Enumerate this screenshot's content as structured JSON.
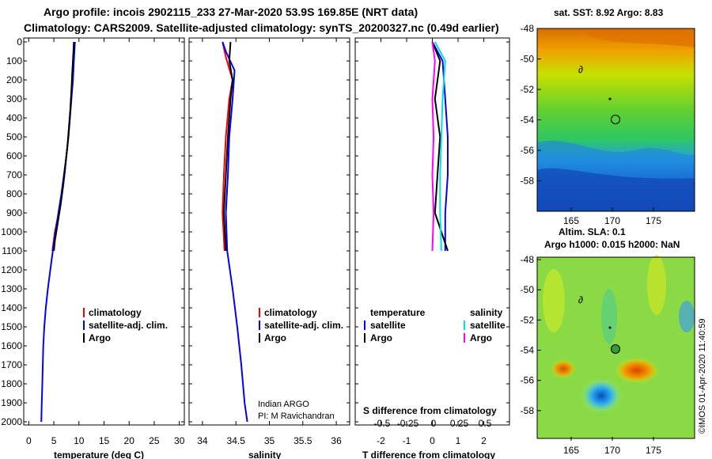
{
  "header": {
    "title_line1": "Argo profile: incois 2902115_233 27-Mar-2020 53.9S 169.85E (NRT data)",
    "title_line2": "Climatology: CARS2009. Satellite-adjusted climatology: synTS_20200327.nc (0.49d earlier)"
  },
  "colors": {
    "climatology": "#ff0000",
    "satellite": "#0000ff",
    "argo": "#000000",
    "sat_salinity": "#00e0e0",
    "argo_salinity": "#ff00ff"
  },
  "chart_data": [
    {
      "type": "line",
      "name": "temperature",
      "xlabel": "temperature (deg C)",
      "ylabel": "",
      "xlim": [
        -1,
        31
      ],
      "ylim": [
        2050,
        0
      ],
      "xticks": [
        "0",
        "5",
        "10",
        "15",
        "20",
        "25",
        "30"
      ],
      "yticks": [
        "0",
        "100",
        "200",
        "300",
        "400",
        "500",
        "600",
        "700",
        "800",
        "900",
        "1000",
        "1100",
        "1200",
        "1300",
        "1400",
        "1500",
        "1600",
        "1700",
        "1800",
        "1900",
        "2000"
      ],
      "legend": [
        "climatology",
        "satellite-adj. clim.",
        "Argo"
      ],
      "series": [
        {
          "name": "climatology",
          "color_key": "climatology",
          "points": [
            [
              9,
              0
            ],
            [
              9,
              50
            ],
            [
              8.7,
              150
            ],
            [
              8.6,
              250
            ],
            [
              8.4,
              300
            ],
            [
              8.2,
              400
            ],
            [
              7.9,
              500
            ],
            [
              7.5,
              600
            ],
            [
              7.1,
              700
            ],
            [
              6.6,
              800
            ],
            [
              6.1,
              900
            ],
            [
              5.6,
              950
            ],
            [
              5.2,
              1000
            ],
            [
              4.7,
              1100
            ]
          ]
        },
        {
          "name": "satellite-adj. clim.",
          "color_key": "satellite",
          "points": [
            [
              9.2,
              0
            ],
            [
              9.0,
              100
            ],
            [
              8.8,
              200
            ],
            [
              8.5,
              300
            ],
            [
              8.2,
              400
            ],
            [
              7.9,
              500
            ],
            [
              7.5,
              600
            ],
            [
              7.0,
              700
            ],
            [
              6.5,
              800
            ],
            [
              5.9,
              900
            ],
            [
              5.3,
              1000
            ],
            [
              4.8,
              1100
            ],
            [
              4.3,
              1200
            ],
            [
              3.8,
              1300
            ],
            [
              3.4,
              1400
            ],
            [
              3.1,
              1500
            ],
            [
              2.9,
              1600
            ],
            [
              2.8,
              1700
            ],
            [
              2.7,
              1800
            ],
            [
              2.6,
              1900
            ],
            [
              2.5,
              2000
            ]
          ]
        },
        {
          "name": "Argo",
          "color_key": "argo",
          "points": [
            [
              9.0,
              0
            ],
            [
              8.9,
              50
            ],
            [
              8.7,
              150
            ],
            [
              8.5,
              250
            ],
            [
              8.3,
              350
            ],
            [
              8.0,
              450
            ],
            [
              7.7,
              550
            ],
            [
              7.3,
              650
            ],
            [
              6.9,
              750
            ],
            [
              6.4,
              850
            ],
            [
              5.8,
              950
            ],
            [
              5.2,
              1050
            ],
            [
              5.0,
              1100
            ]
          ]
        }
      ]
    },
    {
      "type": "line",
      "name": "salinity",
      "xlabel": "salinity",
      "xlim": [
        33.8,
        36.2
      ],
      "ylim": [
        2050,
        0
      ],
      "xticks": [
        "34",
        "34.5",
        "35",
        "35.5",
        "36"
      ],
      "legend": [
        "climatology",
        "satellite-adj. clim.",
        "Argo"
      ],
      "series": [
        {
          "name": "climatology",
          "color_key": "climatology",
          "points": [
            [
              34.3,
              0
            ],
            [
              34.35,
              80
            ],
            [
              34.45,
              200
            ],
            [
              34.4,
              300
            ],
            [
              34.35,
              500
            ],
            [
              34.32,
              700
            ],
            [
              34.3,
              900
            ],
            [
              34.33,
              1100
            ]
          ]
        },
        {
          "name": "satellite-adj. clim.",
          "color_key": "satellite",
          "points": [
            [
              34.3,
              0
            ],
            [
              34.35,
              50
            ],
            [
              34.48,
              150
            ],
            [
              34.45,
              300
            ],
            [
              34.4,
              500
            ],
            [
              34.38,
              700
            ],
            [
              34.35,
              900
            ],
            [
              34.37,
              1100
            ],
            [
              34.45,
              1300
            ],
            [
              34.52,
              1500
            ],
            [
              34.58,
              1700
            ],
            [
              34.63,
              1900
            ],
            [
              34.67,
              2000
            ]
          ]
        },
        {
          "name": "Argo",
          "color_key": "argo",
          "points": [
            [
              34.42,
              0
            ],
            [
              34.4,
              100
            ],
            [
              34.45,
              200
            ],
            [
              34.42,
              300
            ],
            [
              34.38,
              500
            ],
            [
              34.35,
              700
            ],
            [
              34.32,
              900
            ],
            [
              34.35,
              1100
            ]
          ]
        }
      ]
    },
    {
      "type": "line",
      "name": "difference",
      "xlabel": "T difference from climatology",
      "title_inner": "S difference from climatology",
      "xlim": [
        -3,
        3
      ],
      "ylim": [
        2050,
        0
      ],
      "xticks": [
        "-2",
        "-1",
        "0",
        "1",
        "2"
      ],
      "top_ticks": [
        "-0.5",
        "-0.25",
        "0",
        "0.25",
        "0.5"
      ],
      "legend_left_header": "temperature",
      "legend_right_header": "salinity",
      "legend_items": {
        "t_sat": "satellite",
        "t_argo": "Argo",
        "s_sat": "satellite",
        "s_argo": "Argo"
      },
      "series": [
        {
          "name": "T satellite",
          "color_key": "satellite",
          "points": [
            [
              0,
              0
            ],
            [
              0.4,
              100
            ],
            [
              0.5,
              300
            ],
            [
              0.6,
              500
            ],
            [
              0.6,
              700
            ],
            [
              0.5,
              900
            ],
            [
              0.5,
              1100
            ]
          ]
        },
        {
          "name": "T Argo",
          "color_key": "argo",
          "points": [
            [
              0,
              0
            ],
            [
              0.3,
              100
            ],
            [
              0.1,
              300
            ],
            [
              0.3,
              500
            ],
            [
              0.2,
              700
            ],
            [
              0.1,
              900
            ],
            [
              0.6,
              1100
            ]
          ]
        },
        {
          "name": "S satellite",
          "color_key": "sat_salinity",
          "points": [
            [
              0.1,
              0
            ],
            [
              0.5,
              100
            ],
            [
              0.4,
              300
            ],
            [
              0.35,
              500
            ],
            [
              0.3,
              700
            ],
            [
              0.3,
              900
            ],
            [
              0.35,
              1100
            ]
          ]
        },
        {
          "name": "S Argo",
          "color_key": "argo_salinity",
          "points": [
            [
              0,
              0
            ],
            [
              0.1,
              100
            ],
            [
              0.0,
              300
            ],
            [
              0.05,
              500
            ],
            [
              0.0,
              700
            ],
            [
              0.05,
              900
            ],
            [
              0.0,
              1100
            ]
          ]
        }
      ]
    }
  ],
  "maps": {
    "sst": {
      "title": "sat. SST: 8.92 Argo: 8.83",
      "yticks": [
        "-48",
        "-50",
        "-52",
        "-54",
        "-56",
        "-58"
      ],
      "xticks": [
        "165",
        "170",
        "175"
      ]
    },
    "sla": {
      "title_line1": "Altim. SLA: 0.1",
      "title_line2": "Argo h1000: 0.015 h2000: NaN",
      "yticks": [
        "-48",
        "-50",
        "-52",
        "-54",
        "-56",
        "-58"
      ],
      "xticks": [
        "165",
        "170",
        "175"
      ]
    },
    "credit": "©IMOS 01-Apr-2020 11:40:59"
  },
  "credits": {
    "line1": "Indian ARGO",
    "line2": "PI: M Ravichandran"
  }
}
